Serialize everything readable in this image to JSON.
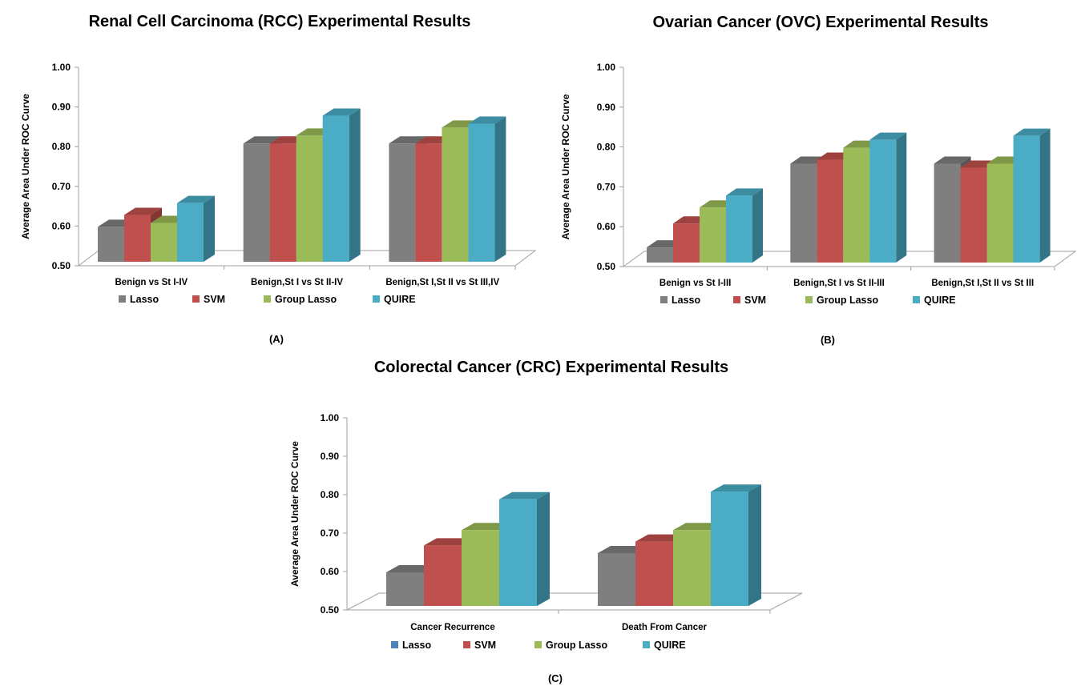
{
  "chart_data": [
    {
      "type": "bar",
      "title": "Renal Cell Carcinoma (RCC) Experimental Results",
      "panel_label": "(A)",
      "ylabel": "Average Area Under ROC Curve",
      "ylim": [
        0.5,
        1.0
      ],
      "yticks": [
        "0.50",
        "0.60",
        "0.70",
        "0.80",
        "0.90",
        "1.00"
      ],
      "categories": [
        "Benign vs St I-IV",
        "Benign,St I vs St II-IV",
        "Benign,St I,St II vs St III,IV"
      ],
      "series": [
        {
          "name": "Lasso",
          "values": [
            0.6,
            0.81,
            0.81
          ]
        },
        {
          "name": "SVM",
          "values": [
            0.63,
            0.81,
            0.81
          ]
        },
        {
          "name": "Group Lasso",
          "values": [
            0.61,
            0.83,
            0.85
          ]
        },
        {
          "name": "QUIRE",
          "values": [
            0.66,
            0.88,
            0.86
          ]
        }
      ],
      "legend": [
        {
          "name": "Lasso",
          "color": "#7f7f7f"
        },
        {
          "name": "SVM",
          "color": "#c0504d"
        },
        {
          "name": "Group Lasso",
          "color": "#9bbb59"
        },
        {
          "name": "QUIRE",
          "color": "#4bacc6"
        }
      ]
    },
    {
      "type": "bar",
      "title": "Ovarian Cancer (OVC) Experimental Results",
      "panel_label": "(B)",
      "ylabel": "Average Area Under ROC Curve",
      "ylim": [
        0.5,
        1.0
      ],
      "yticks": [
        "0.50",
        "0.60",
        "0.70",
        "0.80",
        "0.90",
        "1.00"
      ],
      "categories": [
        "Benign vs St I-III",
        "Benign,St I vs St II-III",
        "Benign,St I,St II vs St III"
      ],
      "series": [
        {
          "name": "Lasso",
          "values": [
            0.55,
            0.76,
            0.76
          ]
        },
        {
          "name": "SVM",
          "values": [
            0.61,
            0.77,
            0.75
          ]
        },
        {
          "name": "Group Lasso",
          "values": [
            0.65,
            0.8,
            0.76
          ]
        },
        {
          "name": "QUIRE",
          "values": [
            0.68,
            0.82,
            0.83
          ]
        }
      ],
      "legend": [
        {
          "name": "Lasso",
          "color": "#7f7f7f"
        },
        {
          "name": "SVM",
          "color": "#c0504d"
        },
        {
          "name": "Group Lasso",
          "color": "#9bbb59"
        },
        {
          "name": "QUIRE",
          "color": "#4bacc6"
        }
      ]
    },
    {
      "type": "bar",
      "title": "Colorectal Cancer (CRC) Experimental Results",
      "panel_label": "(C)",
      "ylabel": "Average Area Under ROC Curve",
      "ylim": [
        0.5,
        1.0
      ],
      "yticks": [
        "0.50",
        "0.60",
        "0.70",
        "0.80",
        "0.90",
        "1.00"
      ],
      "categories": [
        "Cancer Recurrence",
        "Death From Cancer"
      ],
      "series": [
        {
          "name": "Lasso",
          "values": [
            0.6,
            0.65
          ]
        },
        {
          "name": "SVM",
          "values": [
            0.67,
            0.68
          ]
        },
        {
          "name": "Group Lasso",
          "values": [
            0.71,
            0.71
          ]
        },
        {
          "name": "QUIRE",
          "values": [
            0.79,
            0.81
          ]
        }
      ],
      "legend": [
        {
          "name": "Lasso",
          "color": "#4f81bd"
        },
        {
          "name": "SVM",
          "color": "#c0504d"
        },
        {
          "name": "Group Lasso",
          "color": "#9bbb59"
        },
        {
          "name": "QUIRE",
          "color": "#4bacc6"
        }
      ]
    }
  ],
  "series_colors": {
    "Lasso": "#7f7f7f",
    "SVM": "#c0504d",
    "Group Lasso": "#9bbb59",
    "QUIRE": "#4bacc6"
  }
}
